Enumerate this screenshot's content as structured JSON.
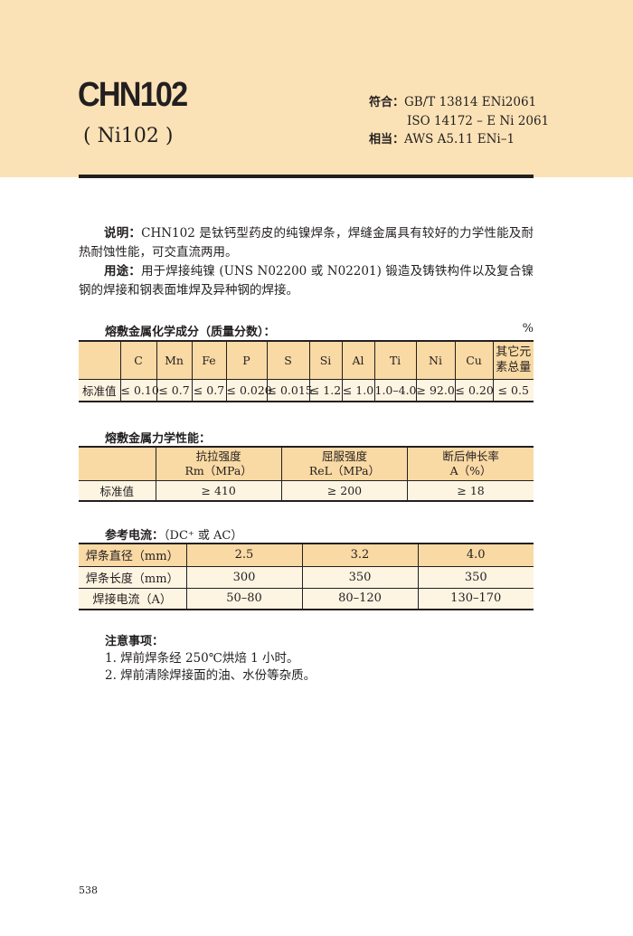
{
  "header": {
    "title": "CHN102",
    "subtitle": "( Ni102 )",
    "conform_label": "符合：",
    "conform_1": "GB/T 13814 ENi2061",
    "conform_2": "ISO 14172 – E Ni 2061",
    "equiv_label": "相当：",
    "equiv": "AWS A5.11 ENi–1"
  },
  "desc": {
    "label": "说明：",
    "text": "CHN102 是钛钙型药皮的纯镍焊条，焊缝金属具有较好的力学性能及耐热耐蚀性能，可交直流两用。",
    "use_label": "用途：",
    "use_text": "用于焊接纯镍 (UNS N02200 或 N02201) 锻造及铸铁构件以及复合镍钢的焊接和钢表面堆焊及异种钢的焊接。"
  },
  "chem": {
    "heading": "熔敷金属化学成分（质量分数）：",
    "unit": "%",
    "headers": [
      "",
      "C",
      "Mn",
      "Fe",
      "P",
      "S",
      "Si",
      "Al",
      "Ti",
      "Ni",
      "Cu",
      "其它元素总量"
    ],
    "row": [
      "标准值",
      "≤ 0.10",
      "≤ 0.7",
      "≤ 0.7",
      "≤ 0.020",
      "≤ 0.015",
      "≤ 1.2",
      "≤ 1.0",
      "1.0–4.0",
      "≥ 92.0",
      "≤ 0.20",
      "≤ 0.5"
    ]
  },
  "mech": {
    "heading": "熔敷金属力学性能：",
    "headers": [
      [
        "",
        ""
      ],
      [
        "抗拉强度",
        "Rm（MPa）"
      ],
      [
        "屈服强度",
        "ReL（MPa）"
      ],
      [
        "断后伸长率",
        "A（%）"
      ]
    ],
    "row": [
      "标准值",
      "≥ 410",
      "≥ 200",
      "≥ 18"
    ]
  },
  "current": {
    "heading": "参考电流：",
    "heading_note": "（DC⁺ 或 AC）",
    "rows": [
      [
        "焊条直径（mm）",
        "2.5",
        "3.2",
        "4.0"
      ],
      [
        "焊条长度（mm）",
        "300",
        "350",
        "350"
      ],
      [
        "焊接电流（A）",
        "50–80",
        "80–120",
        "130–170"
      ]
    ]
  },
  "notes": {
    "heading": "注意事项：",
    "items": [
      "1. 焊前焊条经 250℃烘焙 1 小时。",
      "2. 焊前清除焊接面的油、水份等杂质。"
    ]
  },
  "page_number": "538"
}
